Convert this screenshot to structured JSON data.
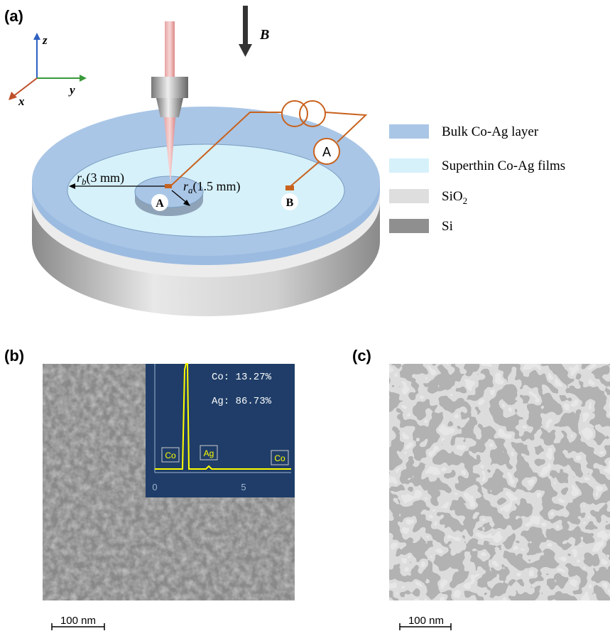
{
  "panel_a": {
    "label": "(a)",
    "axes": {
      "z": "z",
      "y": "y",
      "x": "x"
    },
    "field": "B",
    "radius_outer": {
      "symbol": "r",
      "subscript": "b",
      "text": "(3 mm)"
    },
    "radius_inner": {
      "symbol": "r",
      "subscript": "a",
      "text": "(1.5 mm)"
    },
    "point_a": "A",
    "point_b": "B",
    "ammeter": "A",
    "legend": [
      {
        "text": "Bulk Co-Ag layer",
        "color": "#a9c6e6"
      },
      {
        "text": "Superthin Co-Ag films",
        "color": "#d6f1fa"
      },
      {
        "text": "SiO",
        "subscript": "2",
        "color": "#dedede"
      },
      {
        "text": "Si",
        "color": "#8f8f8f"
      }
    ]
  },
  "panel_b": {
    "label": "(b)",
    "scale_bar": "100 nm",
    "inset": {
      "lines": [
        "Co: 13.27%",
        "Ag: 86.73%"
      ],
      "peaks": [
        "Co",
        "Ag",
        "Co"
      ],
      "ticks": [
        "0",
        "5"
      ]
    }
  },
  "panel_c": {
    "label": "(c)",
    "scale_bar": "100 nm"
  }
}
